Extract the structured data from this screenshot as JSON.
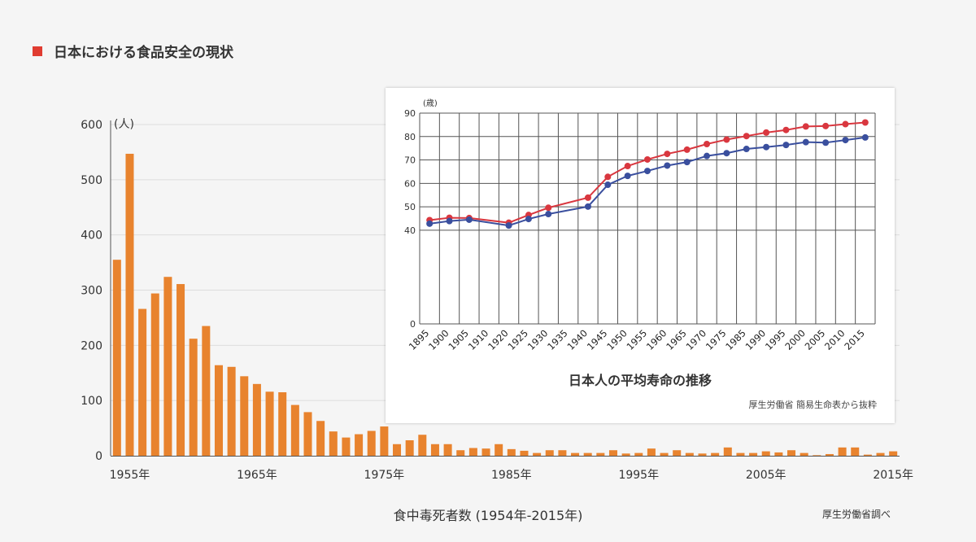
{
  "header": {
    "title": "日本における食品安全の現状",
    "marker_color": "#e03c31"
  },
  "chart_data": [
    {
      "type": "bar",
      "title": "",
      "xlabel": "食中毒死者数 (1954年-2015年)",
      "ylabel": "(人)",
      "source": "厚生労働省調べ",
      "color": "#e8832e",
      "ylim": [
        0,
        600
      ],
      "yticks": [
        0,
        100,
        200,
        300,
        400,
        500,
        600
      ],
      "xtick_labels": [
        {
          "year": 1955,
          "label": "1955年"
        },
        {
          "year": 1965,
          "label": "1965年"
        },
        {
          "year": 1975,
          "label": "1975年"
        },
        {
          "year": 1985,
          "label": "1985年"
        },
        {
          "year": 1995,
          "label": "1995年"
        },
        {
          "year": 2005,
          "label": "2005年"
        },
        {
          "year": 2015,
          "label": "2015年"
        }
      ],
      "x": [
        1954,
        1955,
        1956,
        1957,
        1958,
        1959,
        1960,
        1961,
        1962,
        1963,
        1964,
        1965,
        1966,
        1967,
        1968,
        1969,
        1970,
        1971,
        1972,
        1973,
        1974,
        1975,
        1976,
        1977,
        1978,
        1979,
        1980,
        1981,
        1982,
        1983,
        1984,
        1985,
        1986,
        1987,
        1988,
        1989,
        1990,
        1991,
        1992,
        1993,
        1994,
        1995,
        1996,
        1997,
        1998,
        1999,
        2000,
        2001,
        2002,
        2003,
        2004,
        2005,
        2006,
        2007,
        2008,
        2009,
        2010,
        2011,
        2012,
        2013,
        2014,
        2015
      ],
      "values": [
        355,
        547,
        266,
        294,
        324,
        311,
        212,
        235,
        164,
        161,
        144,
        130,
        116,
        115,
        92,
        79,
        63,
        44,
        33,
        39,
        45,
        53,
        21,
        28,
        38,
        21,
        21,
        10,
        14,
        13,
        21,
        12,
        9,
        5,
        10,
        10,
        5,
        5,
        5,
        10,
        4,
        5,
        13,
        5,
        10,
        5,
        4,
        5,
        15,
        5,
        5,
        8,
        6,
        10,
        5,
        1,
        3,
        15,
        15,
        2,
        5,
        8
      ]
    },
    {
      "type": "line",
      "title": "日本人の平均寿命の推移",
      "ylabel": "(歳)",
      "source": "厚生労働省 簡易生命表から抜粋",
      "ylim": [
        0,
        90
      ],
      "yticks": [
        0,
        40,
        50,
        60,
        70,
        80,
        90
      ],
      "categories": [
        "1895",
        "1900",
        "1905",
        "1910",
        "1920",
        "1925",
        "1930",
        "1935",
        "1940",
        "1945",
        "1950",
        "1955",
        "1960",
        "1965",
        "1970",
        "1975",
        "1985",
        "1990",
        "1995",
        "2000",
        "2005",
        "2010",
        "2015"
      ],
      "series": [
        {
          "color": "#d9373f",
          "values": [
            44.3,
            45.3,
            45.2,
            null,
            43.2,
            46.5,
            49.6,
            null,
            53.9,
            62.8,
            67.4,
            70.2,
            72.6,
            74.4,
            76.8,
            78.7,
            80.2,
            81.7,
            82.8,
            84.3,
            84.5,
            85.3,
            86.0
          ]
        },
        {
          "color": "#3a4f9e",
          "values": [
            42.8,
            43.9,
            44.5,
            null,
            42.0,
            44.8,
            46.9,
            null,
            50.1,
            59.4,
            63.2,
            65.3,
            67.6,
            69.1,
            71.7,
            72.9,
            74.7,
            75.5,
            76.4,
            77.6,
            77.4,
            78.5,
            79.6
          ]
        }
      ]
    }
  ]
}
